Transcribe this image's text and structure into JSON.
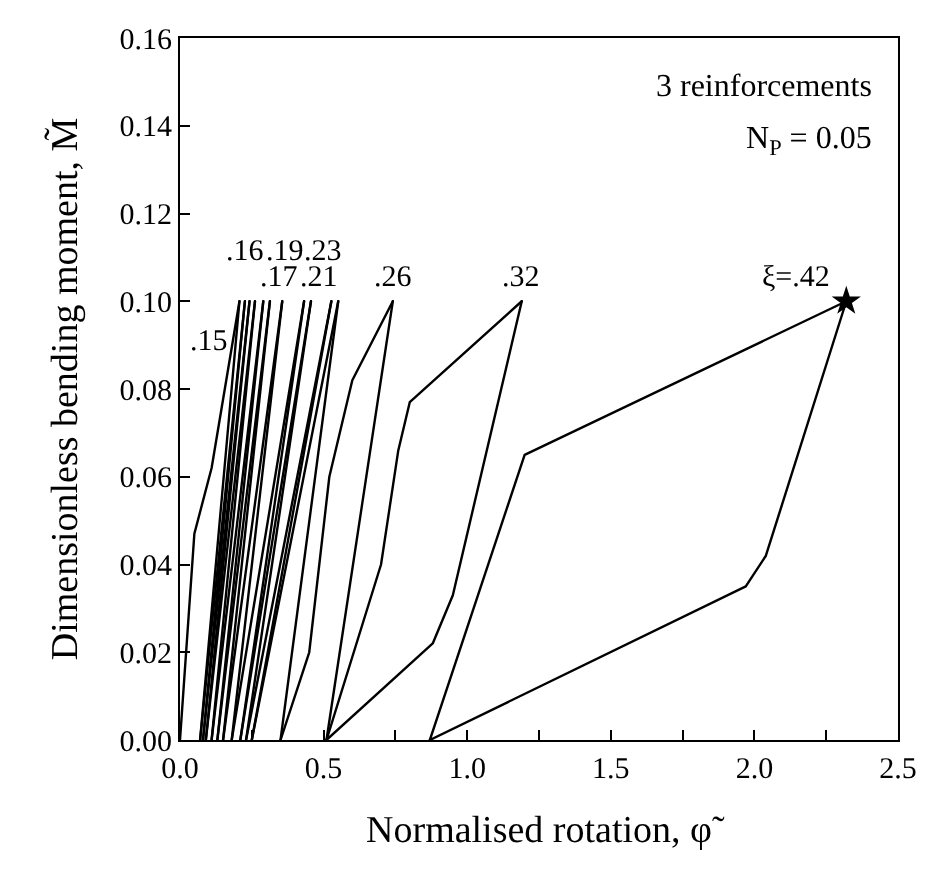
{
  "chart_data": {
    "type": "line",
    "xlabel": "Normalised rotation, φ̃",
    "ylabel": "Dimensionless bending moment, M̃",
    "xlim": [
      0,
      2.5
    ],
    "ylim": [
      0,
      0.16
    ],
    "xticks": [
      {
        "value": 0,
        "label": "0.0"
      },
      {
        "value": 0.25,
        "label": null
      },
      {
        "value": 0.5,
        "label": "0.5"
      },
      {
        "value": 0.75,
        "label": null
      },
      {
        "value": 1,
        "label": "1.0"
      },
      {
        "value": 1.25,
        "label": null
      },
      {
        "value": 1.5,
        "label": "1.5"
      },
      {
        "value": 1.75,
        "label": null
      },
      {
        "value": 2,
        "label": "2.0"
      },
      {
        "value": 2.25,
        "label": null
      },
      {
        "value": 2.5,
        "label": "2.5"
      }
    ],
    "yticks": [
      {
        "value": 0,
        "label": "0.00"
      },
      {
        "value": 0.02,
        "label": "0.02"
      },
      {
        "value": 0.04,
        "label": "0.04"
      },
      {
        "value": 0.06,
        "label": "0.06"
      },
      {
        "value": 0.08,
        "label": "0.08"
      },
      {
        "value": 0.1,
        "label": "0.10"
      },
      {
        "value": 0.12,
        "label": "0.12"
      },
      {
        "value": 0.14,
        "label": "0.14"
      },
      {
        "value": 0.16,
        "label": "0.16"
      }
    ],
    "legend": false,
    "marker": "none",
    "line_style": "solid",
    "series": [
      {
        "name": ".15",
        "color": "#000000",
        "x": [
          0,
          0.05,
          0.11,
          0.207
        ],
        "values": [
          0,
          0.047,
          0.062,
          0.1
        ]
      },
      {
        "color": "#000000",
        "x": [
          0.07,
          0.207
        ],
        "values": [
          0,
          0.1
        ]
      },
      {
        "name": ".16",
        "color": "#000000",
        "x": [
          0.07,
          0.226
        ],
        "values": [
          0,
          0.1
        ]
      },
      {
        "color": "#000000",
        "x": [
          0.08,
          0.226
        ],
        "values": [
          0,
          0.1
        ]
      },
      {
        "name": ".17",
        "color": "#000000",
        "x": [
          0.08,
          0.242
        ],
        "values": [
          0,
          0.1
        ]
      },
      {
        "color": "#000000",
        "x": [
          0.09,
          0.242
        ],
        "values": [
          0,
          0.1
        ]
      },
      {
        "color": "#000000",
        "x": [
          0.09,
          0.261
        ],
        "values": [
          0,
          0.1
        ]
      },
      {
        "color": "#000000",
        "x": [
          0.11,
          0.261
        ],
        "values": [
          0,
          0.1
        ]
      },
      {
        "name": ".19",
        "color": "#000000",
        "x": [
          0.11,
          0.29
        ],
        "values": [
          0,
          0.1
        ]
      },
      {
        "color": "#000000",
        "x": [
          0.13,
          0.29
        ],
        "values": [
          0,
          0.1
        ]
      },
      {
        "color": "#000000",
        "x": [
          0.13,
          0.313
        ],
        "values": [
          0,
          0.1
        ]
      },
      {
        "color": "#000000",
        "x": [
          0.15,
          0.313
        ],
        "values": [
          0,
          0.1
        ]
      },
      {
        "name": ".21",
        "color": "#000000",
        "x": [
          0.15,
          0.356
        ],
        "values": [
          0,
          0.1
        ]
      },
      {
        "color": "#000000",
        "x": [
          0.18,
          0.356
        ],
        "values": [
          0,
          0.1
        ]
      },
      {
        "color": "#000000",
        "x": [
          0.18,
          0.432
        ],
        "values": [
          0,
          0.1
        ]
      },
      {
        "color": "#000000",
        "x": [
          0.21,
          0.432
        ],
        "values": [
          0,
          0.1
        ]
      },
      {
        "name": ".23",
        "color": "#000000",
        "x": [
          0.21,
          0.456
        ],
        "values": [
          0,
          0.1
        ]
      },
      {
        "color": "#000000",
        "x": [
          0.23,
          0.456
        ],
        "values": [
          0,
          0.1
        ]
      },
      {
        "color": "#000000",
        "x": [
          0.23,
          0.527
        ],
        "values": [
          0,
          0.1
        ]
      },
      {
        "color": "#000000",
        "x": [
          0.25,
          0.527
        ],
        "values": [
          0,
          0.1
        ]
      },
      {
        "color": "#000000",
        "x": [
          0.25,
          0.551
        ],
        "values": [
          0,
          0.1
        ]
      },
      {
        "color": "#000000",
        "x": [
          0.35,
          0.551
        ],
        "values": [
          0,
          0.1
        ]
      },
      {
        "name": ".26",
        "color": "#000000",
        "x": [
          0.35,
          0.45,
          0.52,
          0.6,
          0.741
        ],
        "values": [
          0,
          0.02,
          0.06,
          0.082,
          0.1
        ]
      },
      {
        "color": "#000000",
        "x": [
          0.51,
          0.741
        ],
        "values": [
          0,
          0.1
        ]
      },
      {
        "name": ".32",
        "color": "#000000",
        "x": [
          0.51,
          0.88,
          0.95,
          1.19
        ],
        "values": [
          0,
          0.022,
          0.033,
          0.1
        ]
      },
      {
        "color": "#000000",
        "x": [
          0.51,
          0.7,
          0.76,
          0.8,
          1.19
        ],
        "values": [
          0,
          0.04,
          0.066,
          0.077,
          0.1
        ]
      },
      {
        "name": "ξ=.42",
        "color": "#000000",
        "x": [
          0.87,
          1.2,
          2.32
        ],
        "values": [
          0,
          0.065,
          0.1
        ]
      },
      {
        "color": "#000000",
        "x": [
          0.87,
          1.97,
          2.04,
          2.32
        ],
        "values": [
          0,
          0.035,
          0.042,
          0.1
        ]
      },
      {
        "type": "scatter",
        "marker": "star",
        "color": "#000000",
        "x": [
          2.32
        ],
        "values": [
          0.1
        ]
      }
    ],
    "annotations": [
      "3 reinforcements",
      "N$_{P}$ = 0.05"
    ]
  }
}
